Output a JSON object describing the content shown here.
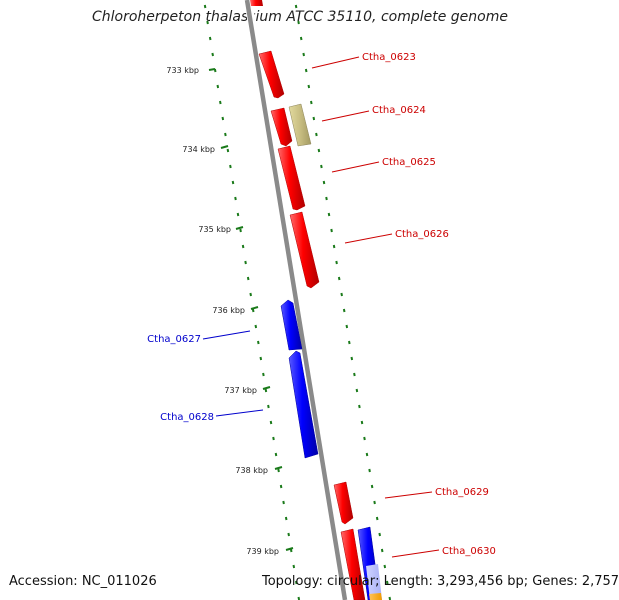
{
  "title": "Chloroherpeton thalassium ATCC 35110, complete genome",
  "footer": {
    "accession": "Accession: NC_011026",
    "summary": "Topology: circular; Length: 3,293,456 bp; Genes: 2,757"
  },
  "colors": {
    "forward_gene": "#ff0000",
    "reverse_gene": "#0000ff",
    "other_gene": "#c8be82",
    "backbone": "#888888",
    "ticks": "#1a7a1a",
    "forward_label": "#cc0000",
    "reverse_label": "#0000cc"
  },
  "scale": {
    "unit": "kbp",
    "ticks": [
      {
        "label": "733 kbp"
      },
      {
        "label": "734 kbp"
      },
      {
        "label": "735 kbp"
      },
      {
        "label": "736 kbp"
      },
      {
        "label": "737 kbp"
      },
      {
        "label": "738 kbp"
      },
      {
        "label": "739 kbp"
      }
    ]
  },
  "genes": [
    {
      "label": "Ctha_0623",
      "strand": "forward"
    },
    {
      "label": "Ctha_0624",
      "strand": "forward"
    },
    {
      "label": "Ctha_0625",
      "strand": "forward"
    },
    {
      "label": "Ctha_0626",
      "strand": "forward"
    },
    {
      "label": "Ctha_0627",
      "strand": "reverse"
    },
    {
      "label": "Ctha_0628",
      "strand": "reverse"
    },
    {
      "label": "Ctha_0629",
      "strand": "forward"
    },
    {
      "label": "Ctha_0630",
      "strand": "forward"
    }
  ]
}
